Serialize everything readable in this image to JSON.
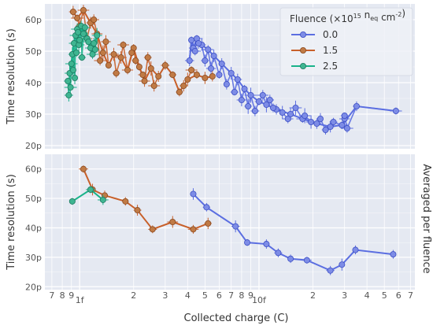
{
  "chart_data": {
    "type": "line",
    "xlabel": "Collected charge (C)",
    "ylabel": "Time resolution (s)",
    "xscale": "log",
    "xlim": [
      6.4e-16,
      7.4e-14
    ],
    "grid": true,
    "shared_x": true,
    "x_tick_labels": [
      {
        "x": 7e-16,
        "label": "7"
      },
      {
        "x": 8e-16,
        "label": "8"
      },
      {
        "x": 9e-16,
        "label": "9"
      },
      {
        "x": 1e-15,
        "label": "1f"
      },
      {
        "x": 2e-15,
        "label": "2"
      },
      {
        "x": 3e-15,
        "label": "3"
      },
      {
        "x": 4e-15,
        "label": "4"
      },
      {
        "x": 5e-15,
        "label": "5"
      },
      {
        "x": 6e-15,
        "label": "6"
      },
      {
        "x": 7e-15,
        "label": "7"
      },
      {
        "x": 8e-15,
        "label": "8"
      },
      {
        "x": 9e-15,
        "label": "9"
      },
      {
        "x": 1e-14,
        "label": "10f"
      },
      {
        "x": 2e-14,
        "label": "2"
      },
      {
        "x": 3e-14,
        "label": "3"
      },
      {
        "x": 4e-14,
        "label": "4"
      },
      {
        "x": 5e-14,
        "label": "5"
      },
      {
        "x": 6e-14,
        "label": "6"
      },
      {
        "x": 7e-14,
        "label": "7"
      }
    ],
    "legend": {
      "title_main": "Fluence (×10",
      "title_exp": "15",
      "title_mid": " n",
      "title_sub": "eq",
      "title_unit": " cm",
      "title_unit_exp": "-2",
      "title_end": ")",
      "placement": "top-right"
    },
    "series_styles": [
      {
        "name": "0.0",
        "color": "#5b6ee1",
        "fill": "#7d8ce6",
        "edge": "#3d4fc4"
      },
      {
        "name": "1.5",
        "color": "#c8602a",
        "fill": "#c07a45",
        "edge": "#8a4a20"
      },
      {
        "name": "2.5",
        "color": "#19b38a",
        "fill": "#3fb591",
        "edge": "#1d7a60"
      }
    ],
    "panels": [
      {
        "name": "all-measurements",
        "ylim": [
          1.9e-11,
          6.5e-11
        ],
        "yticks": [
          2e-11,
          3e-11,
          4e-11,
          5e-11,
          6e-11
        ],
        "ytick_labels": [
          "20p",
          "30p",
          "40p",
          "50p",
          "60p"
        ],
        "right_label": "",
        "series": [
          {
            "fluence": "0.0",
            "points": [
              [
                4.1e-15,
                4.7e-11
              ],
              [
                4.2e-15,
                5.35e-11
              ],
              [
                4.3e-15,
                5.1e-11
              ],
              [
                4.5e-15,
                5.4e-11
              ],
              [
                4.8e-15,
                5.2e-11
              ],
              [
                5.2e-15,
                5.05e-11
              ],
              [
                5.6e-15,
                4.85e-11
              ],
              [
                6.2e-15,
                4.6e-11
              ],
              [
                7e-15,
                4.3e-11
              ],
              [
                7.6e-15,
                4.1e-11
              ],
              [
                8.3e-15,
                3.8e-11
              ],
              [
                9e-15,
                3.6e-11
              ],
              [
                1e-14,
                3.4e-11
              ],
              [
                1.1e-14,
                3.3e-11
              ],
              [
                1.25e-14,
                3.15e-11
              ],
              [
                1.5e-14,
                3e-11
              ],
              [
                1.75e-14,
                2.85e-11
              ],
              [
                2.1e-14,
                2.7e-11
              ],
              [
                2.5e-14,
                2.6e-11
              ],
              [
                2.9e-14,
                2.65e-11
              ],
              [
                3.5e-14,
                3.25e-11
              ],
              [
                5.8e-14,
                3.1e-11
              ]
            ],
            "extra_points": [
              [
                4.4e-15,
                5e-11
              ],
              [
                4.6e-15,
                5.25e-11
              ],
              [
                5e-15,
                4.7e-11
              ],
              [
                5.4e-15,
                4.45e-11
              ],
              [
                6e-15,
                4.25e-11
              ],
              [
                6.6e-15,
                3.95e-11
              ],
              [
                7.3e-15,
                3.7e-11
              ],
              [
                8e-15,
                3.45e-11
              ],
              [
                8.7e-15,
                3.25e-11
              ],
              [
                9.5e-15,
                3.1e-11
              ],
              [
                1.05e-14,
                3.6e-11
              ],
              [
                1.15e-14,
                3.45e-11
              ],
              [
                1.2e-14,
                3.2e-11
              ],
              [
                1.35e-14,
                3.05e-11
              ],
              [
                1.45e-14,
                2.85e-11
              ],
              [
                1.6e-14,
                3.2e-11
              ],
              [
                1.8e-14,
                2.95e-11
              ],
              [
                1.95e-14,
                2.75e-11
              ],
              [
                2.2e-14,
                2.85e-11
              ],
              [
                2.35e-14,
                2.5e-11
              ],
              [
                2.6e-14,
                2.75e-11
              ],
              [
                3e-14,
                2.85e-11
              ],
              [
                3.1e-14,
                2.55e-11
              ],
              [
                3e-14,
                2.95e-11
              ]
            ]
          },
          {
            "fluence": "1.5",
            "points": [
              [
                9.2e-16,
                6.25e-11
              ],
              [
                9.7e-16,
                6.05e-11
              ],
              [
                1.05e-15,
                6.3e-11
              ],
              [
                1.15e-15,
                5.9e-11
              ],
              [
                1.25e-15,
                5.55e-11
              ],
              [
                1.35e-15,
                4.95e-11
              ],
              [
                1.45e-15,
                4.55e-11
              ],
              [
                1.55e-15,
                4.9e-11
              ],
              [
                1.7e-15,
                4.8e-11
              ],
              [
                1.85e-15,
                4.4e-11
              ],
              [
                2e-15,
                5.1e-11
              ],
              [
                2.15e-15,
                4.5e-11
              ],
              [
                2.3e-15,
                4.05e-11
              ],
              [
                2.5e-15,
                4.45e-11
              ],
              [
                2.75e-15,
                4.2e-11
              ],
              [
                3e-15,
                4.55e-11
              ],
              [
                3.3e-15,
                4.25e-11
              ],
              [
                3.6e-15,
                3.7e-11
              ],
              [
                4e-15,
                4.1e-11
              ],
              [
                4.5e-15,
                4.25e-11
              ],
              [
                5e-15,
                4.15e-11
              ],
              [
                5.5e-15,
                4.2e-11
              ]
            ],
            "extra_points": [
              [
                1e-15,
                5.8e-11
              ],
              [
                1.1e-15,
                5.4e-11
              ],
              [
                1.2e-15,
                6e-11
              ],
              [
                1.3e-15,
                4.7e-11
              ],
              [
                1.4e-15,
                5.3e-11
              ],
              [
                1.6e-15,
                4.3e-11
              ],
              [
                1.75e-15,
                5.2e-11
              ],
              [
                1.95e-15,
                4.95e-11
              ],
              [
                2.05e-15,
                4.7e-11
              ],
              [
                2.25e-15,
                4.25e-11
              ],
              [
                2.4e-15,
                4.8e-11
              ],
              [
                2.6e-15,
                3.9e-11
              ],
              [
                3.8e-15,
                3.9e-11
              ],
              [
                4.2e-15,
                4.4e-11
              ]
            ]
          },
          {
            "fluence": "2.5",
            "points": [
              [
                8.7e-16,
                3.6e-11
              ],
              [
                8.8e-16,
                4.3e-11
              ],
              [
                9e-16,
                4.6e-11
              ],
              [
                9.1e-16,
                4.9e-11
              ],
              [
                9.3e-16,
                5.25e-11
              ],
              [
                9.5e-16,
                5.5e-11
              ],
              [
                9.7e-16,
                5.7e-11
              ],
              [
                9.9e-16,
                5.2e-11
              ],
              [
                1.02e-15,
                5.8e-11
              ],
              [
                1.05e-15,
                5.55e-11
              ],
              [
                1.1e-15,
                5.4e-11
              ],
              [
                1.15e-15,
                5.1e-11
              ],
              [
                1.2e-15,
                5.25e-11
              ],
              [
                1.25e-15,
                5.5e-11
              ]
            ],
            "extra_points": [
              [
                8.6e-16,
                4.05e-11
              ],
              [
                8.9e-16,
                3.85e-11
              ],
              [
                9.2e-16,
                4.4e-11
              ],
              [
                9.4e-16,
                4.15e-11
              ],
              [
                9.6e-16,
                4.95e-11
              ],
              [
                9.8e-16,
                5.6e-11
              ],
              [
                1e-15,
                5.35e-11
              ],
              [
                1.03e-15,
                4.8e-11
              ],
              [
                1.07e-15,
                5.75e-11
              ],
              [
                1.12e-15,
                5.3e-11
              ],
              [
                1.18e-15,
                4.9e-11
              ],
              [
                1.22e-15,
                5.05e-11
              ]
            ]
          }
        ]
      },
      {
        "name": "averaged",
        "ylim": [
          1.9e-11,
          6.5e-11
        ],
        "yticks": [
          2e-11,
          3e-11,
          4e-11,
          5e-11,
          6e-11
        ],
        "ytick_labels": [
          "20p",
          "30p",
          "40p",
          "50p",
          "60p"
        ],
        "right_label": "Averaged per fluence",
        "series": [
          {
            "fluence": "0.0",
            "points": [
              [
                4.3e-15,
                5.15e-11
              ],
              [
                5.1e-15,
                4.7e-11
              ],
              [
                7.4e-15,
                4.05e-11
              ],
              [
                8.6e-15,
                3.5e-11
              ],
              [
                1.1e-14,
                3.45e-11
              ],
              [
                1.28e-14,
                3.15e-11
              ],
              [
                1.5e-14,
                2.95e-11
              ],
              [
                1.85e-14,
                2.9e-11
              ],
              [
                2.5e-14,
                2.55e-11
              ],
              [
                2.9e-14,
                2.75e-11
              ],
              [
                3.45e-14,
                3.25e-11
              ],
              [
                5.6e-14,
                3.1e-11
              ]
            ],
            "extra_points": []
          },
          {
            "fluence": "1.5",
            "points": [
              [
                1.05e-15,
                6e-11
              ],
              [
                1.18e-15,
                5.3e-11
              ],
              [
                1.38e-15,
                5.1e-11
              ],
              [
                1.8e-15,
                4.9e-11
              ],
              [
                2.1e-15,
                4.6e-11
              ],
              [
                2.55e-15,
                3.95e-11
              ],
              [
                3.3e-15,
                4.2e-11
              ],
              [
                4.3e-15,
                3.95e-11
              ],
              [
                5.2e-15,
                4.15e-11
              ]
            ],
            "extra_points": []
          },
          {
            "fluence": "2.5",
            "points": [
              [
                9.1e-16,
                4.9e-11
              ],
              [
                1.15e-15,
                5.3e-11
              ],
              [
                1.35e-15,
                4.95e-11
              ]
            ],
            "extra_points": []
          }
        ]
      }
    ]
  }
}
